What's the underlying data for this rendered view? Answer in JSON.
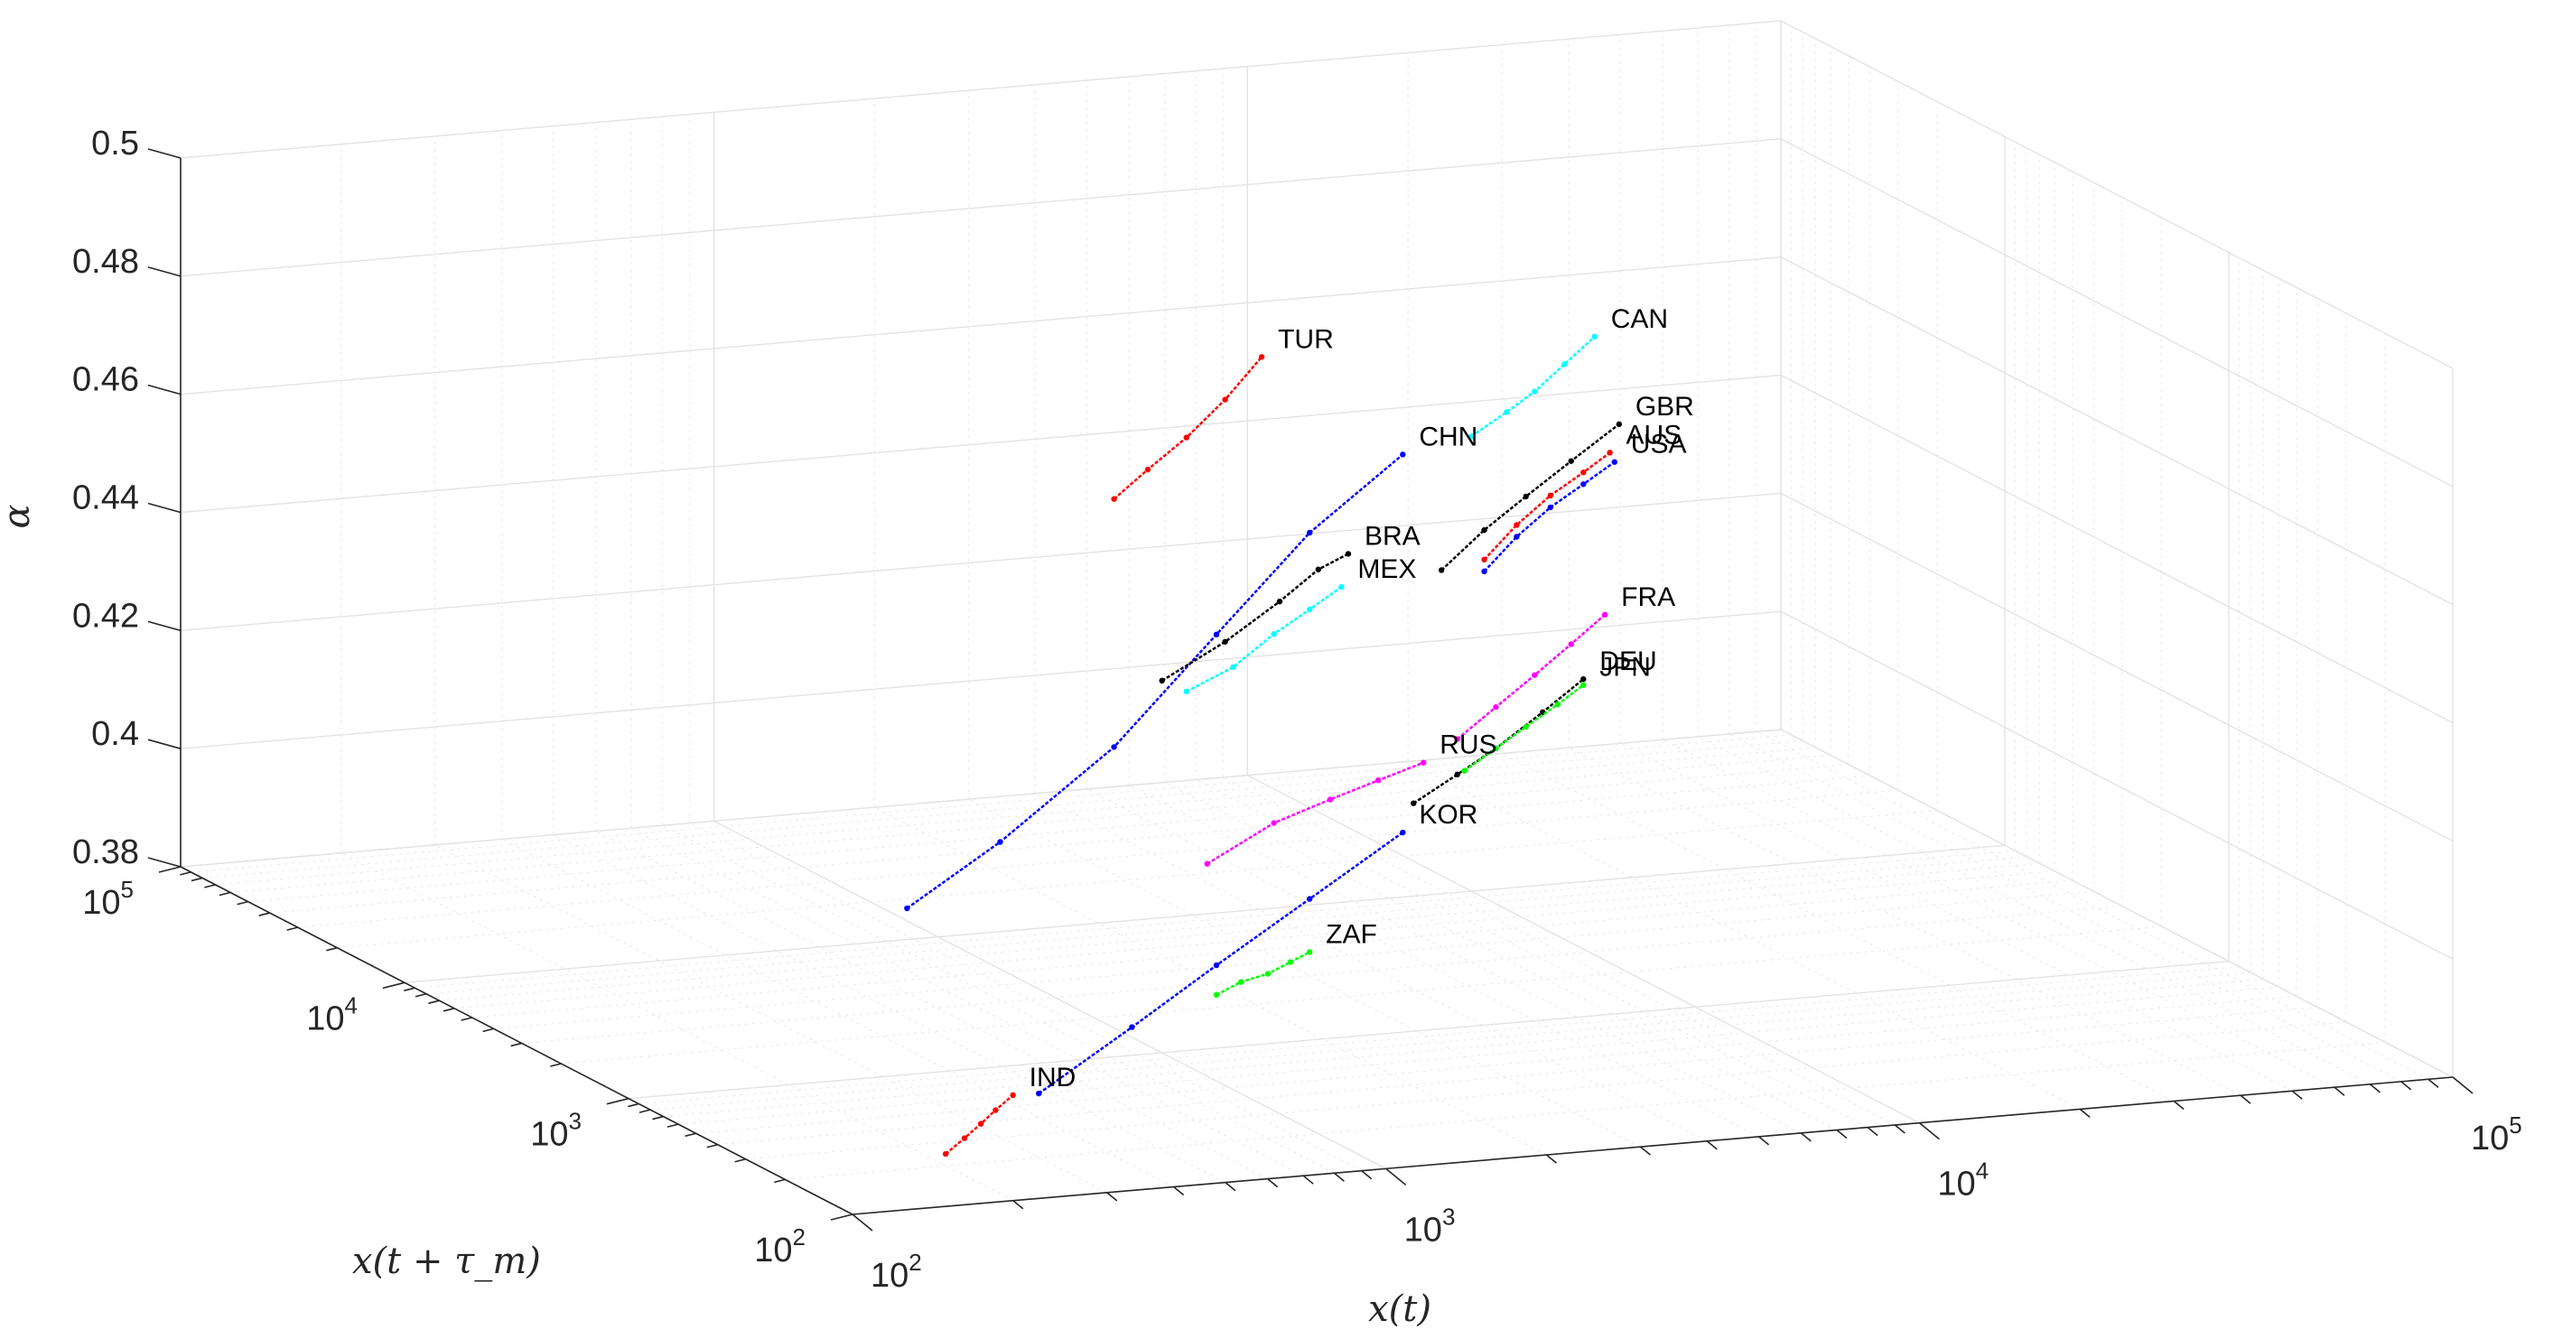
{
  "chart_data": {
    "type": "scatter3d",
    "title": "",
    "xlabel": "x(t)",
    "ylabel": "x(t + τ_m)",
    "zlabel": "α",
    "xscale": "log",
    "yscale": "log",
    "xlim": [
      100,
      100000
    ],
    "ylim": [
      100,
      100000
    ],
    "zlim": [
      0.38,
      0.5
    ],
    "z_ticks": [
      "0.38",
      "0.4",
      "0.42",
      "0.44",
      "0.46",
      "0.48",
      "0.5"
    ],
    "z_tick_values": [
      0.38,
      0.4,
      0.42,
      0.44,
      0.46,
      0.48,
      0.5
    ],
    "x_ticks": [
      {
        "base": "10",
        "exp": "2"
      },
      {
        "base": "10",
        "exp": "3"
      },
      {
        "base": "10",
        "exp": "4"
      },
      {
        "base": "10",
        "exp": "5"
      }
    ],
    "x_tick_values": [
      100,
      1000,
      10000,
      100000
    ],
    "y_ticks": [
      {
        "base": "10",
        "exp": "2"
      },
      {
        "base": "10",
        "exp": "3"
      },
      {
        "base": "10",
        "exp": "4"
      },
      {
        "base": "10",
        "exp": "5"
      }
    ],
    "y_tick_values": [
      100,
      1000,
      10000,
      100000
    ],
    "grid": true,
    "series": [
      {
        "name": "TUR",
        "color": "#ff0000",
        "x": [
          700,
          900,
          1200,
          1600,
          2100
        ],
        "y": [
          700,
          900,
          1200,
          1600,
          2100
        ],
        "z": [
          0.478,
          0.48,
          0.482,
          0.485,
          0.489
        ]
      },
      {
        "name": "CHN",
        "color": "#0000ff",
        "x": [
          150,
          300,
          700,
          1500,
          3000,
          6000
        ],
        "y": [
          150,
          300,
          700,
          1500,
          3000,
          6000
        ],
        "z": [
          0.427,
          0.43,
          0.436,
          0.446,
          0.455,
          0.46
        ]
      },
      {
        "name": "CAN",
        "color": "#00ffff",
        "x": [
          10000,
          13000,
          16000,
          20000,
          25000
        ],
        "y": [
          10000,
          13000,
          16000,
          20000,
          25000
        ],
        "z": [
          0.457,
          0.458,
          0.459,
          0.461,
          0.463
        ]
      },
      {
        "name": "BRA",
        "color": "#000000",
        "x": [
          1000,
          1600,
          2400,
          3200,
          4000
        ],
        "y": [
          1000,
          1600,
          2400,
          3200,
          4000
        ],
        "z": [
          0.443,
          0.444,
          0.446,
          0.448,
          0.448
        ]
      },
      {
        "name": "MEX",
        "color": "#00ffff",
        "x": [
          1200,
          1700,
          2300,
          3000,
          3800
        ],
        "y": [
          1200,
          1700,
          2300,
          3000,
          3800
        ],
        "z": [
          0.439,
          0.439,
          0.441,
          0.442,
          0.443
        ]
      },
      {
        "name": "GBR",
        "color": "#000000",
        "x": [
          8000,
          11000,
          15000,
          21000,
          30000
        ],
        "y": [
          8000,
          11000,
          15000,
          21000,
          30000
        ],
        "z": [
          0.437,
          0.44,
          0.442,
          0.444,
          0.446
        ]
      },
      {
        "name": "AUS",
        "color": "#ff0000",
        "x": [
          11000,
          14000,
          18000,
          23000,
          28000
        ],
        "y": [
          11000,
          14000,
          18000,
          23000,
          28000
        ],
        "z": [
          0.435,
          0.438,
          0.44,
          0.441,
          0.442
        ]
      },
      {
        "name": "USA",
        "color": "#0000ff",
        "x": [
          11000,
          14000,
          18000,
          23000,
          29000
        ],
        "y": [
          11000,
          14000,
          18000,
          23000,
          29000
        ],
        "z": [
          0.433,
          0.436,
          0.438,
          0.439,
          0.44
        ]
      },
      {
        "name": "RUS",
        "color": "#ff00ff",
        "x": [
          1400,
          2300,
          3500,
          5000,
          7000
        ],
        "y": [
          1400,
          2300,
          3500,
          5000,
          7000
        ],
        "z": [
          0.408,
          0.409,
          0.408,
          0.407,
          0.406
        ]
      },
      {
        "name": "FRA",
        "color": "#ff00ff",
        "x": [
          9000,
          12000,
          16000,
          21000,
          27000
        ],
        "y": [
          9000,
          12000,
          16000,
          21000,
          27000
        ],
        "z": [
          0.407,
          0.409,
          0.411,
          0.413,
          0.415
        ]
      },
      {
        "name": "DEU",
        "color": "#000000",
        "x": [
          6500,
          9000,
          12000,
          17000,
          23000
        ],
        "y": [
          6500,
          9000,
          12000,
          17000,
          23000
        ],
        "z": [
          0.4,
          0.401,
          0.402,
          0.404,
          0.406
        ]
      },
      {
        "name": "JPN",
        "color": "#00ff00",
        "x": [
          9500,
          12000,
          15000,
          19000,
          23000
        ],
        "y": [
          9500,
          12000,
          15000,
          19000,
          23000
        ],
        "z": [
          0.401,
          0.402,
          0.403,
          0.404,
          0.405
        ]
      },
      {
        "name": "KOR",
        "color": "#0000ff",
        "x": [
          400,
          800,
          1500,
          3000,
          6000
        ],
        "y": [
          400,
          800,
          1500,
          3000,
          6000
        ],
        "z": [
          0.384,
          0.387,
          0.39,
          0.393,
          0.396
        ]
      },
      {
        "name": "ZAF",
        "color": "#00ff00",
        "x": [
          1500,
          1800,
          2200,
          2600,
          3000
        ],
        "y": [
          1500,
          1800,
          2200,
          2600,
          3000
        ],
        "z": [
          0.385,
          0.385,
          0.384,
          0.384,
          0.384
        ]
      },
      {
        "name": "IND",
        "color": "#ff0000",
        "x": [
          200,
          230,
          260,
          290,
          330
        ],
        "y": [
          200,
          230,
          260,
          290,
          330
        ],
        "z": [
          0.382,
          0.383,
          0.384,
          0.385,
          0.386
        ]
      }
    ]
  }
}
